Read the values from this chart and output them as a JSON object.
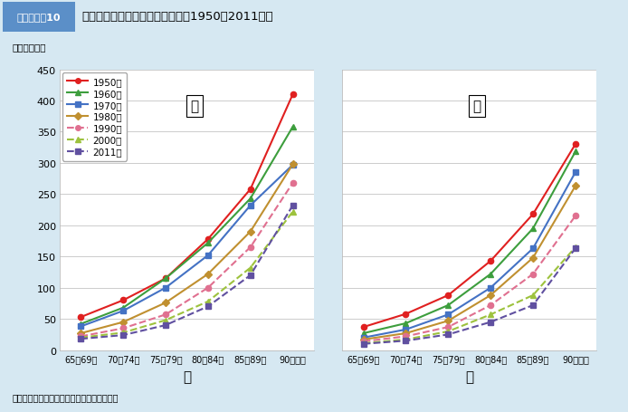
{
  "title_label": "図１－１－10",
  "title_main": "高齢者の性・年齢階級別死亡率（1950〜2011年）",
  "ylabel": "（人口千対）",
  "xlabel_male": "男",
  "xlabel_female": "女",
  "source": "資料：厚生労働省「人口動態統計」より作成",
  "categories": [
    "65〜69歳",
    "70〜74歳",
    "75〜79歳",
    "80〜84歳",
    "85〜89歳",
    "90歳以上"
  ],
  "years": [
    "1950年",
    "1960年",
    "1970年",
    "1980年",
    "1990年",
    "2000年",
    "2011年"
  ],
  "colors": [
    "#e02020",
    "#3d9e3d",
    "#4472c4",
    "#c09030",
    "#e07090",
    "#9dc23d",
    "#6050a0"
  ],
  "linestyles": [
    "-",
    "-",
    "-",
    "-",
    "--",
    "--",
    "--"
  ],
  "markers": [
    "o",
    "^",
    "s",
    "D",
    "o",
    "^",
    "s"
  ],
  "male_data": [
    [
      53,
      80,
      115,
      178,
      258,
      410
    ],
    [
      42,
      68,
      115,
      172,
      243,
      358
    ],
    [
      38,
      63,
      100,
      152,
      232,
      297
    ],
    [
      27,
      45,
      76,
      122,
      190,
      298
    ],
    [
      22,
      35,
      57,
      100,
      165,
      268
    ],
    [
      20,
      28,
      48,
      78,
      132,
      222
    ],
    [
      18,
      24,
      40,
      70,
      120,
      232
    ]
  ],
  "female_data": [
    [
      37,
      58,
      88,
      143,
      218,
      330
    ],
    [
      27,
      43,
      72,
      122,
      195,
      318
    ],
    [
      20,
      33,
      57,
      100,
      163,
      285
    ],
    [
      17,
      27,
      47,
      88,
      148,
      263
    ],
    [
      14,
      22,
      37,
      72,
      122,
      215
    ],
    [
      11,
      17,
      30,
      57,
      88,
      165
    ],
    [
      10,
      15,
      25,
      45,
      72,
      163
    ]
  ],
  "ylim": [
    0,
    450
  ],
  "yticks": [
    0,
    50,
    100,
    150,
    200,
    250,
    300,
    350,
    400,
    450
  ],
  "background_color": "#d6e8f2",
  "plot_bg_color": "#ffffff",
  "grid_color": "#cccccc",
  "title_box_color": "#5b8fc8"
}
